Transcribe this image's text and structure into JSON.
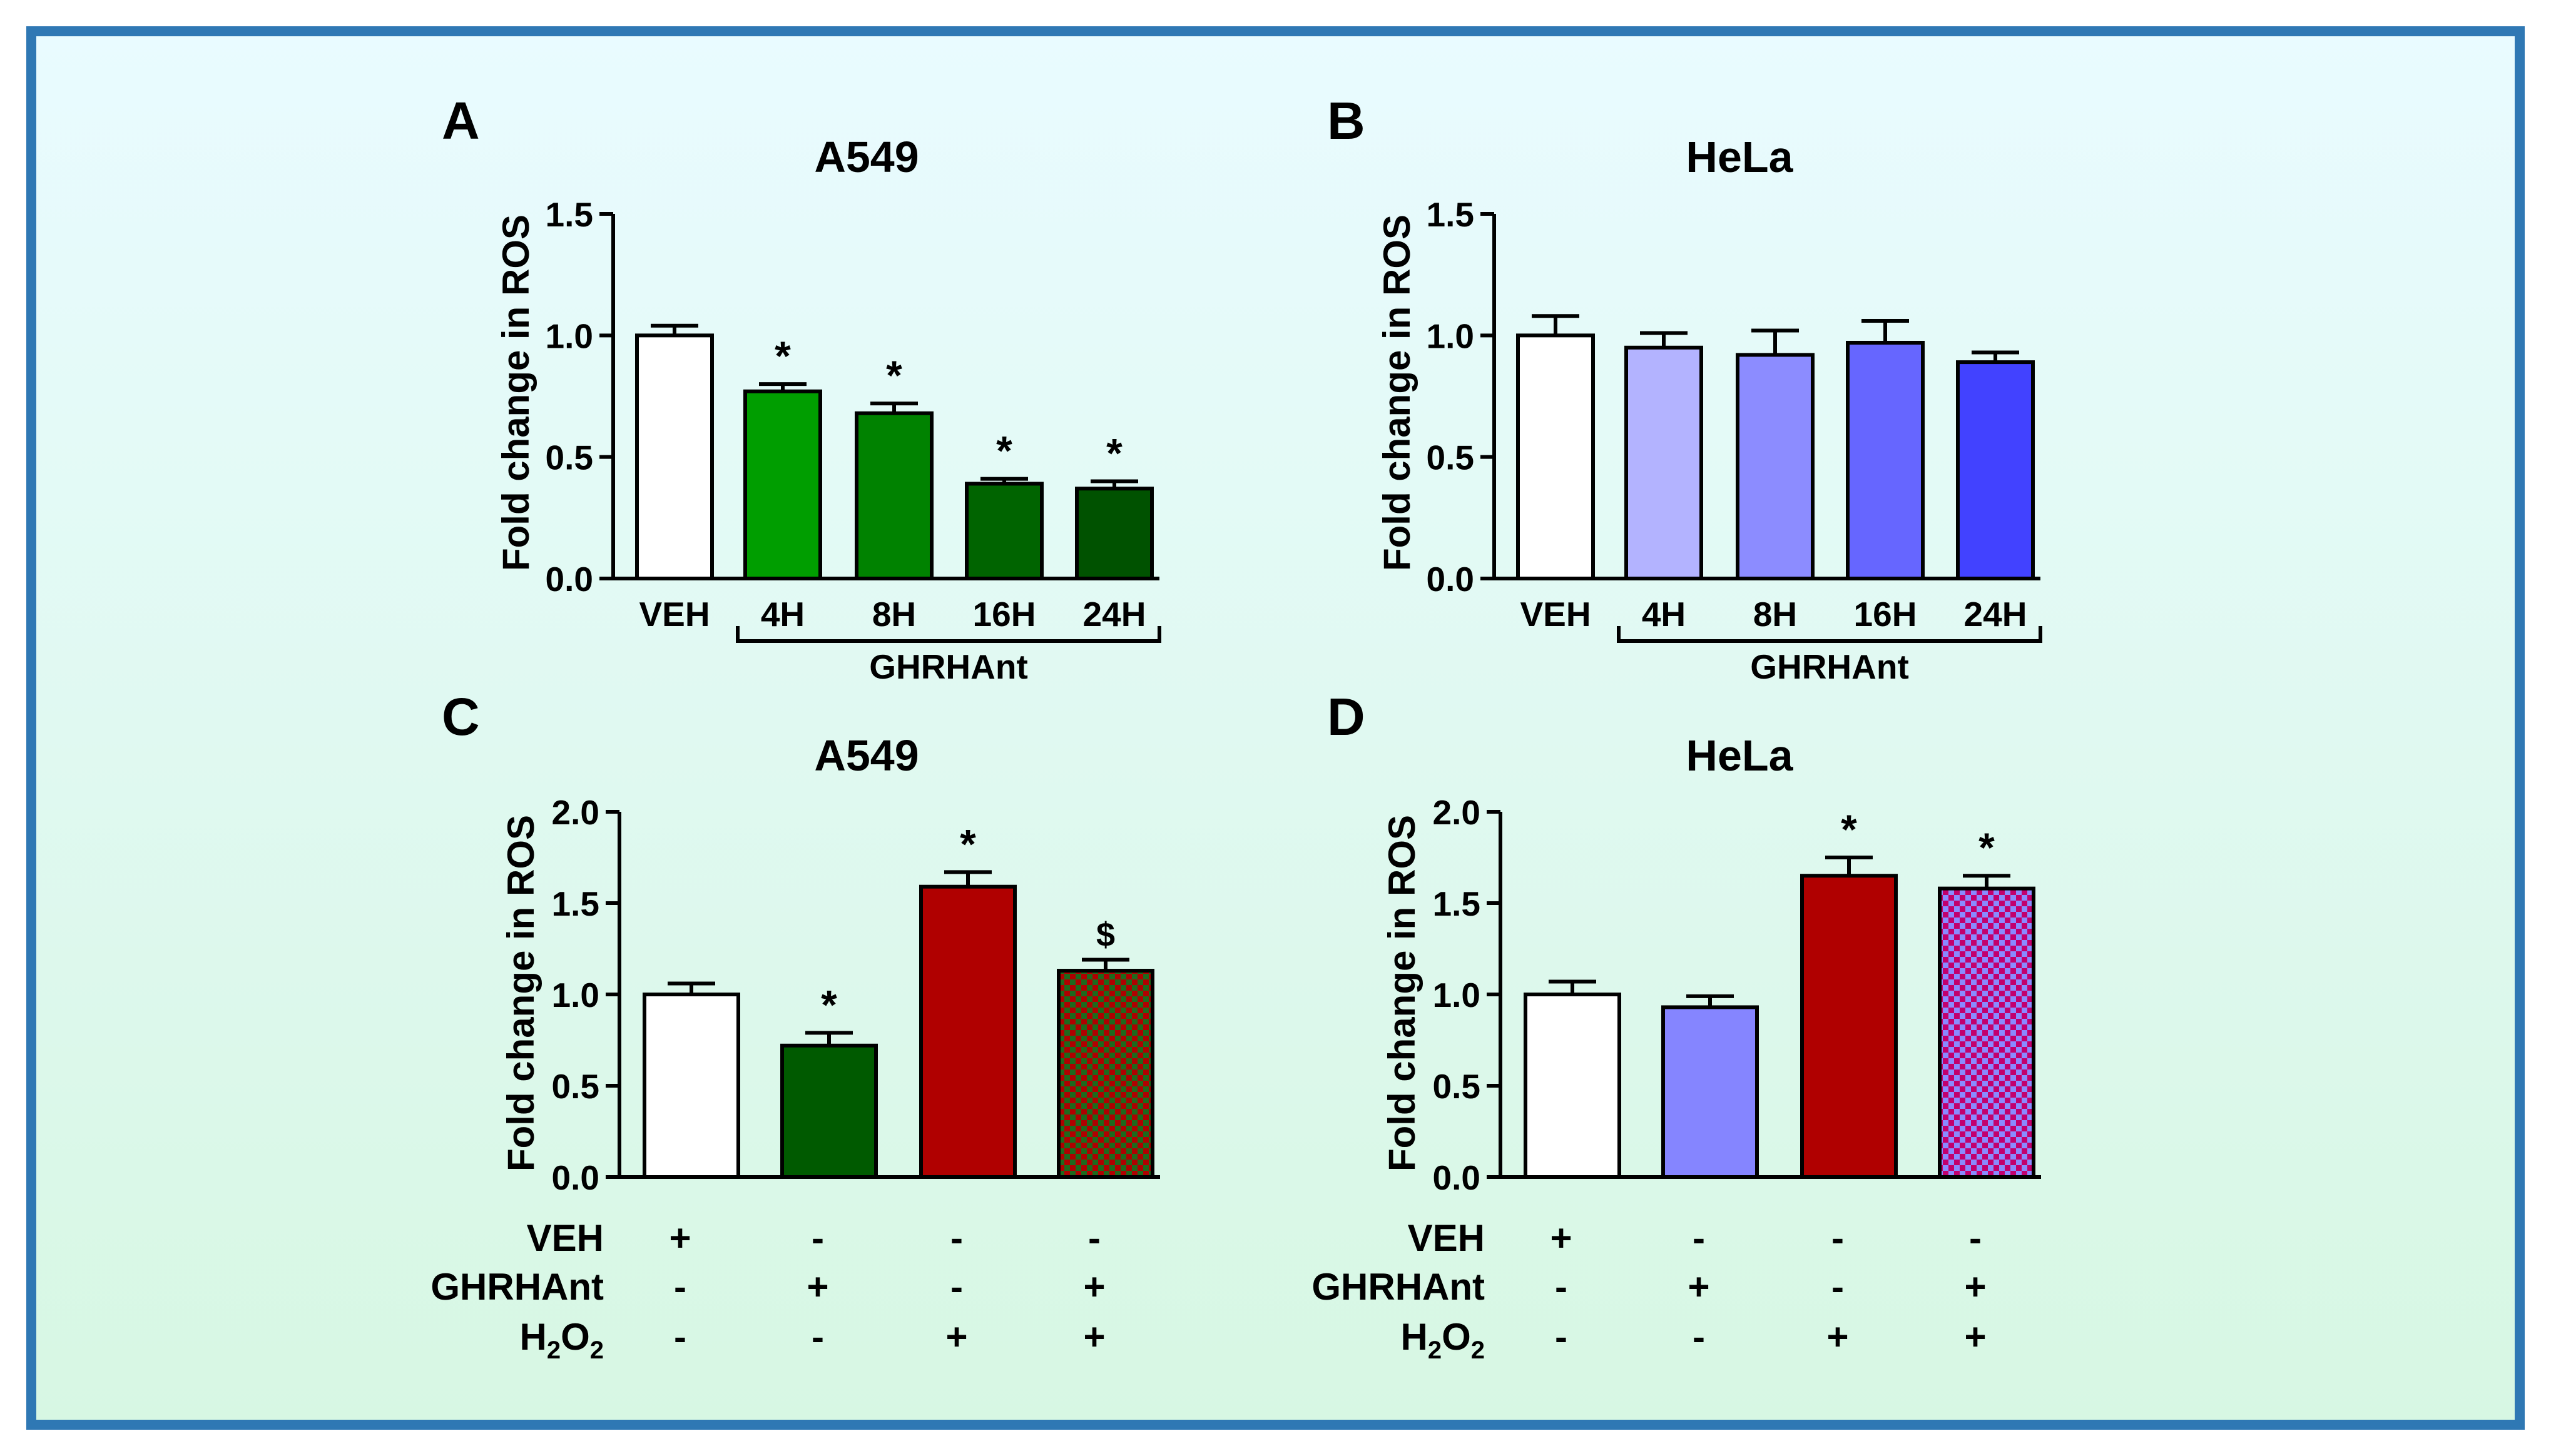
{
  "figure": {
    "border_color": "#2f78b4",
    "background_top": "#e9fbff",
    "background_bottom": "#d7f7e3"
  },
  "chart_data": [
    {
      "panel_letter": "A",
      "title": "A549",
      "type": "bar",
      "ylabel": "Fold change in ROS",
      "ylim": [
        0,
        1.5
      ],
      "yticks": [
        "0.0",
        "0.5",
        "1.0",
        "1.5"
      ],
      "categories": [
        "VEH",
        "4H",
        "8H",
        "16H",
        "24H"
      ],
      "values": [
        1.0,
        0.77,
        0.68,
        0.39,
        0.37
      ],
      "errors": [
        0.04,
        0.03,
        0.04,
        0.02,
        0.03
      ],
      "bar_colors": [
        "#ffffff",
        "#009e00",
        "#008200",
        "#006400",
        "#005200"
      ],
      "patterns": [
        "none",
        "none",
        "none",
        "none",
        "none"
      ],
      "annotations": [
        "",
        "*",
        "*",
        "*",
        "*"
      ],
      "group_label": "GHRHAnt",
      "group_span": [
        1,
        4
      ]
    },
    {
      "panel_letter": "B",
      "title": "HeLa",
      "type": "bar",
      "ylabel": "Fold change in ROS",
      "ylim": [
        0,
        1.5
      ],
      "yticks": [
        "0.0",
        "0.5",
        "1.0",
        "1.5"
      ],
      "categories": [
        "VEH",
        "4H",
        "8H",
        "16H",
        "24H"
      ],
      "values": [
        1.0,
        0.95,
        0.92,
        0.97,
        0.89
      ],
      "errors": [
        0.08,
        0.06,
        0.1,
        0.09,
        0.04
      ],
      "bar_colors": [
        "#ffffff",
        "#b3b3ff",
        "#8c8cff",
        "#6666ff",
        "#4242ff"
      ],
      "patterns": [
        "none",
        "none",
        "none",
        "none",
        "none"
      ],
      "annotations": [
        "",
        "",
        "",
        "",
        ""
      ],
      "group_label": "GHRHAnt",
      "group_span": [
        1,
        4
      ]
    },
    {
      "panel_letter": "C",
      "title": "A549",
      "type": "bar",
      "ylabel": "Fold change in ROS",
      "ylim": [
        0,
        2.0
      ],
      "yticks": [
        "0.0",
        "0.5",
        "1.0",
        "1.5",
        "2.0"
      ],
      "values": [
        1.0,
        0.72,
        1.59,
        1.13
      ],
      "errors": [
        0.06,
        0.07,
        0.08,
        0.06
      ],
      "bar_colors": [
        "#ffffff",
        "#005a00",
        "#b00000",
        "#b00000"
      ],
      "patterns": [
        "none",
        "none",
        "none",
        "checker-green"
      ],
      "annotations": [
        "",
        "*",
        "*",
        "$"
      ],
      "conditions": [
        {
          "label": "VEH",
          "signs": [
            "+",
            "-",
            "-",
            "-"
          ]
        },
        {
          "label": "GHRHAnt",
          "signs": [
            "-",
            "+",
            "-",
            "+"
          ]
        },
        {
          "label": "H",
          "sub1": "2",
          "mid": "O",
          "sub2": "2",
          "signs": [
            "-",
            "-",
            "+",
            "+"
          ]
        }
      ]
    },
    {
      "panel_letter": "D",
      "title": "HeLa",
      "type": "bar",
      "ylabel": "Fold change in ROS",
      "ylim": [
        0,
        2.0
      ],
      "yticks": [
        "0.0",
        "0.5",
        "1.0",
        "1.5",
        "2.0"
      ],
      "values": [
        1.0,
        0.93,
        1.65,
        1.58
      ],
      "errors": [
        0.07,
        0.06,
        0.1,
        0.07
      ],
      "bar_colors": [
        "#ffffff",
        "#8585ff",
        "#b00000",
        "#b00000"
      ],
      "patterns": [
        "none",
        "none",
        "none",
        "checker-blue"
      ],
      "annotations": [
        "",
        "",
        "*",
        "*"
      ],
      "conditions": [
        {
          "label": "VEH",
          "signs": [
            "+",
            "-",
            "-",
            "-"
          ]
        },
        {
          "label": "GHRHAnt",
          "signs": [
            "-",
            "+",
            "-",
            "+"
          ]
        },
        {
          "label": "H",
          "sub1": "2",
          "mid": "O",
          "sub2": "2",
          "signs": [
            "-",
            "-",
            "+",
            "+"
          ]
        }
      ]
    }
  ]
}
